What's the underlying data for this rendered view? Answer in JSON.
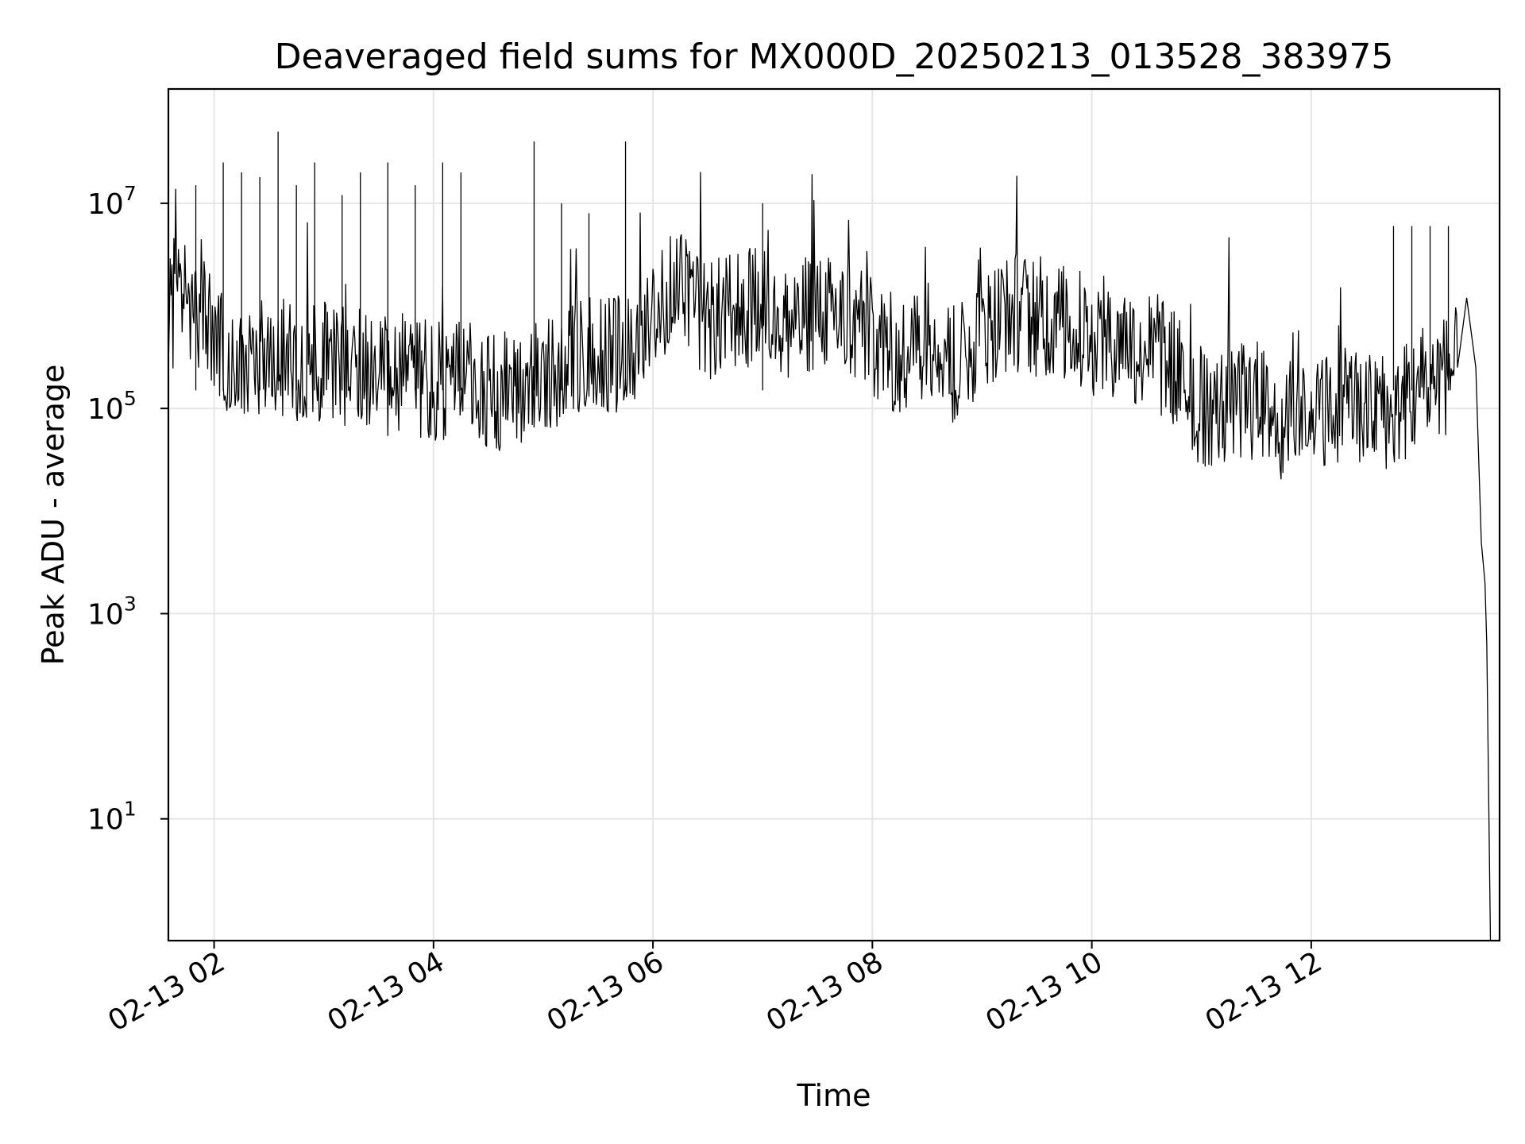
{
  "chart_data": {
    "type": "line",
    "title": "Deaveraged field sums for MX000D_20250213_013528_383975",
    "xlabel": "Time",
    "ylabel": "Peak ADU - average",
    "y_scale": "log",
    "grid": true,
    "xlim": [
      "2025-02-13 01:35",
      "2025-02-13 13:43"
    ],
    "ylim": [
      0.65,
      130000000
    ],
    "x_ticks": [
      {
        "value": "2025-02-13 02:00",
        "label": "02-13 02"
      },
      {
        "value": "2025-02-13 04:00",
        "label": "02-13 04"
      },
      {
        "value": "2025-02-13 06:00",
        "label": "02-13 06"
      },
      {
        "value": "2025-02-13 08:00",
        "label": "02-13 08"
      },
      {
        "value": "2025-02-13 10:00",
        "label": "02-13 10"
      },
      {
        "value": "2025-02-13 12:00",
        "label": "02-13 12"
      }
    ],
    "y_ticks": [
      {
        "value": 10,
        "base": "10",
        "exp": "1"
      },
      {
        "value": 1000,
        "base": "10",
        "exp": "3"
      },
      {
        "value": 100000,
        "base": "10",
        "exp": "5"
      },
      {
        "value": 10000000,
        "base": "10",
        "exp": "7"
      }
    ],
    "series": [
      {
        "color": "#000000",
        "x": [
          "2025-02-13 01:35",
          "2025-02-13 01:40",
          "2025-02-13 01:45",
          "2025-02-13 01:50",
          "2025-02-13 01:55",
          "2025-02-13 02:00",
          "2025-02-13 02:10",
          "2025-02-13 02:20",
          "2025-02-13 02:30",
          "2025-02-13 02:40",
          "2025-02-13 02:50",
          "2025-02-13 03:00",
          "2025-02-13 03:15",
          "2025-02-13 03:30",
          "2025-02-13 03:45",
          "2025-02-13 04:00",
          "2025-02-13 04:15",
          "2025-02-13 04:30",
          "2025-02-13 04:45",
          "2025-02-13 05:00",
          "2025-02-13 05:15",
          "2025-02-13 05:30",
          "2025-02-13 05:45",
          "2025-02-13 06:00",
          "2025-02-13 06:15",
          "2025-02-13 06:30",
          "2025-02-13 06:45",
          "2025-02-13 07:00",
          "2025-02-13 07:15",
          "2025-02-13 07:30",
          "2025-02-13 07:45",
          "2025-02-13 08:00",
          "2025-02-13 08:15",
          "2025-02-13 08:30",
          "2025-02-13 08:45",
          "2025-02-13 09:00",
          "2025-02-13 09:15",
          "2025-02-13 09:30",
          "2025-02-13 09:45",
          "2025-02-13 10:00",
          "2025-02-13 10:15",
          "2025-02-13 10:30",
          "2025-02-13 10:45",
          "2025-02-13 11:00",
          "2025-02-13 11:15",
          "2025-02-13 11:30",
          "2025-02-13 11:45",
          "2025-02-13 12:00",
          "2025-02-13 12:15",
          "2025-02-13 12:30",
          "2025-02-13 12:45",
          "2025-02-13 13:00",
          "2025-02-13 13:10",
          "2025-02-13 13:15",
          "2025-02-13 13:20",
          "2025-02-13 13:25",
          "2025-02-13 13:30",
          "2025-02-13 13:33",
          "2025-02-13 13:35",
          "2025-02-13 13:36",
          "2025-02-13 13:38"
        ],
        "values": [
          700000,
          1000000,
          1200000,
          900000,
          1000000,
          400000,
          300000,
          250000,
          350000,
          300000,
          280000,
          300000,
          250000,
          220000,
          200000,
          180000,
          200000,
          150000,
          160000,
          200000,
          300000,
          400000,
          300000,
          1200000,
          1400000,
          700000,
          900000,
          1000000,
          600000,
          1000000,
          700000,
          500000,
          300000,
          500000,
          250000,
          600000,
          900000,
          800000,
          700000,
          500000,
          500000,
          350000,
          250000,
          100000,
          110000,
          120000,
          70000,
          120000,
          100000,
          90000,
          100000,
          150000,
          200000,
          220000,
          250000,
          1200000,
          250000,
          5000,
          2000,
          500,
          0.65
        ]
      }
    ],
    "spikes": {
      "x": [
        "2025-02-13 01:50",
        "2025-02-13 02:05",
        "2025-02-13 02:15",
        "2025-02-13 02:25",
        "2025-02-13 02:35",
        "2025-02-13 02:45",
        "2025-02-13 02:55",
        "2025-02-13 03:10",
        "2025-02-13 03:20",
        "2025-02-13 03:35",
        "2025-02-13 03:50",
        "2025-02-13 04:05",
        "2025-02-13 04:15",
        "2025-02-13 04:55",
        "2025-02-13 05:10",
        "2025-02-13 05:25",
        "2025-02-13 05:45",
        "2025-02-13 07:00",
        "2025-02-13 12:45",
        "2025-02-13 12:55",
        "2025-02-13 13:05",
        "2025-02-13 13:15"
      ],
      "values": [
        15000000,
        25000000,
        20000000,
        18000000,
        50000000,
        15000000,
        25000000,
        12000000,
        20000000,
        25000000,
        15000000,
        25000000,
        20000000,
        40000000,
        10000000,
        8000000,
        40000000,
        10000000,
        6000000,
        6000000,
        6000000,
        6000000
      ]
    }
  }
}
